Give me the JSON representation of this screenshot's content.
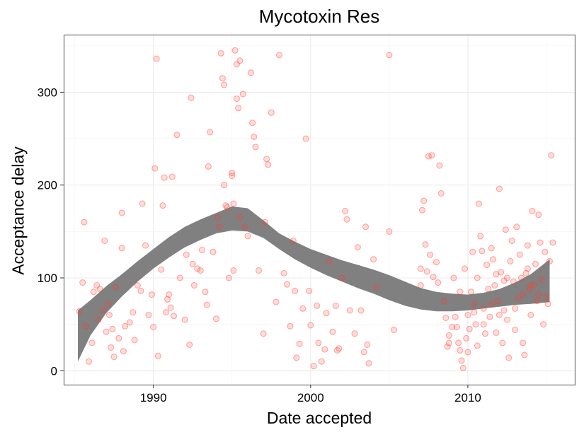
{
  "chart_data": {
    "type": "scatter",
    "title": "Mycotoxin Res",
    "xlabel": "Date accepted",
    "ylabel": "Acceptance delay",
    "xlim": [
      1984.3,
      2016.8
    ],
    "ylim": [
      -15,
      362
    ],
    "x_ticks": [
      1990,
      2000,
      2010
    ],
    "y_ticks": [
      0,
      100,
      200,
      300
    ],
    "x_tick_labels": [
      "1990",
      "2000",
      "2010"
    ],
    "y_tick_labels": [
      "0",
      "100",
      "200",
      "300"
    ],
    "grid": true,
    "colors": {
      "points": "#ff3b30",
      "band": "#808080",
      "background": "#ffffff",
      "grid": "#ebebeb",
      "border": "#7f7f7f"
    },
    "trend_band": {
      "x": [
        1985.2,
        1986,
        1987,
        1988,
        1989,
        1990,
        1991,
        1992,
        1993,
        1994,
        1995,
        1996,
        1997,
        1998,
        1999,
        2000,
        2001,
        2002,
        2003,
        2004,
        2005,
        2006,
        2007,
        2008,
        2009,
        2010,
        2011,
        2012,
        2013,
        2014,
        2015.2
      ],
      "lower": [
        10,
        38,
        62,
        80,
        96,
        110,
        122,
        133,
        141,
        148,
        151,
        150,
        143,
        131,
        120,
        111,
        103,
        96,
        89,
        83,
        76,
        70,
        66,
        64,
        64,
        65,
        67,
        69,
        71,
        72,
        74
      ],
      "upper": [
        65,
        76,
        91,
        104,
        118,
        131,
        144,
        155,
        163,
        170,
        177,
        175,
        162,
        148,
        139,
        131,
        125,
        119,
        114,
        109,
        103,
        96,
        89,
        85,
        83,
        82,
        84,
        88,
        95,
        104,
        120
      ]
    },
    "points": [
      {
        "x": 1985.3,
        "y": 64
      },
      {
        "x": 1985.5,
        "y": 95
      },
      {
        "x": 1985.6,
        "y": 160
      },
      {
        "x": 1985.7,
        "y": 48
      },
      {
        "x": 1985.9,
        "y": 10
      },
      {
        "x": 1986.1,
        "y": 30
      },
      {
        "x": 1986.2,
        "y": 85
      },
      {
        "x": 1986.4,
        "y": 92
      },
      {
        "x": 1986.5,
        "y": 55
      },
      {
        "x": 1986.6,
        "y": 88
      },
      {
        "x": 1986.8,
        "y": 65
      },
      {
        "x": 1986.9,
        "y": 140
      },
      {
        "x": 1987.0,
        "y": 42
      },
      {
        "x": 1987.1,
        "y": 72
      },
      {
        "x": 1987.2,
        "y": 60
      },
      {
        "x": 1987.3,
        "y": 25
      },
      {
        "x": 1987.4,
        "y": 45
      },
      {
        "x": 1987.5,
        "y": 15
      },
      {
        "x": 1987.6,
        "y": 90
      },
      {
        "x": 1987.8,
        "y": 35
      },
      {
        "x": 1988.0,
        "y": 170
      },
      {
        "x": 1988.0,
        "y": 132
      },
      {
        "x": 1988.1,
        "y": 21
      },
      {
        "x": 1988.2,
        "y": 48
      },
      {
        "x": 1988.5,
        "y": 52
      },
      {
        "x": 1988.7,
        "y": 63
      },
      {
        "x": 1988.8,
        "y": 33
      },
      {
        "x": 1989.0,
        "y": 92
      },
      {
        "x": 1989.2,
        "y": 86
      },
      {
        "x": 1989.3,
        "y": 180
      },
      {
        "x": 1989.5,
        "y": 135
      },
      {
        "x": 1989.7,
        "y": 60
      },
      {
        "x": 1989.9,
        "y": 82
      },
      {
        "x": 1990.0,
        "y": 47
      },
      {
        "x": 1990.1,
        "y": 218
      },
      {
        "x": 1990.2,
        "y": 336
      },
      {
        "x": 1990.3,
        "y": 16
      },
      {
        "x": 1990.5,
        "y": 109
      },
      {
        "x": 1990.6,
        "y": 178
      },
      {
        "x": 1990.7,
        "y": 208
      },
      {
        "x": 1990.8,
        "y": 63
      },
      {
        "x": 1990.9,
        "y": 77
      },
      {
        "x": 1991.0,
        "y": 82
      },
      {
        "x": 1991.1,
        "y": 68
      },
      {
        "x": 1991.2,
        "y": 209
      },
      {
        "x": 1991.3,
        "y": 59
      },
      {
        "x": 1991.5,
        "y": 254
      },
      {
        "x": 1991.7,
        "y": 100
      },
      {
        "x": 1992.0,
        "y": 55
      },
      {
        "x": 1992.1,
        "y": 125
      },
      {
        "x": 1992.3,
        "y": 28
      },
      {
        "x": 1992.4,
        "y": 294
      },
      {
        "x": 1992.5,
        "y": 115
      },
      {
        "x": 1992.6,
        "y": 92
      },
      {
        "x": 1992.8,
        "y": 110
      },
      {
        "x": 1993.0,
        "y": 108
      },
      {
        "x": 1993.1,
        "y": 130
      },
      {
        "x": 1993.3,
        "y": 85
      },
      {
        "x": 1993.4,
        "y": 71
      },
      {
        "x": 1993.5,
        "y": 220
      },
      {
        "x": 1993.6,
        "y": 257
      },
      {
        "x": 1993.8,
        "y": 128
      },
      {
        "x": 1994.0,
        "y": 56
      },
      {
        "x": 1994.1,
        "y": 165
      },
      {
        "x": 1994.2,
        "y": 155
      },
      {
        "x": 1994.3,
        "y": 342
      },
      {
        "x": 1994.4,
        "y": 315
      },
      {
        "x": 1994.5,
        "y": 308
      },
      {
        "x": 1994.5,
        "y": 200
      },
      {
        "x": 1994.6,
        "y": 178
      },
      {
        "x": 1994.7,
        "y": 176
      },
      {
        "x": 1994.8,
        "y": 100
      },
      {
        "x": 1995.0,
        "y": 210
      },
      {
        "x": 1995.0,
        "y": 213
      },
      {
        "x": 1995.1,
        "y": 180
      },
      {
        "x": 1995.1,
        "y": 108
      },
      {
        "x": 1995.2,
        "y": 345
      },
      {
        "x": 1995.3,
        "y": 330
      },
      {
        "x": 1995.3,
        "y": 293
      },
      {
        "x": 1995.4,
        "y": 283
      },
      {
        "x": 1995.5,
        "y": 334
      },
      {
        "x": 1995.5,
        "y": 165
      },
      {
        "x": 1995.7,
        "y": 298
      },
      {
        "x": 1995.8,
        "y": 155
      },
      {
        "x": 1996.0,
        "y": 145
      },
      {
        "x": 1996.2,
        "y": 321
      },
      {
        "x": 1996.3,
        "y": 267
      },
      {
        "x": 1996.4,
        "y": 252
      },
      {
        "x": 1996.5,
        "y": 241
      },
      {
        "x": 1996.7,
        "y": 108
      },
      {
        "x": 1997.0,
        "y": 40
      },
      {
        "x": 1997.1,
        "y": 160
      },
      {
        "x": 1997.2,
        "y": 228
      },
      {
        "x": 1997.3,
        "y": 222
      },
      {
        "x": 1997.5,
        "y": 278
      },
      {
        "x": 1997.8,
        "y": 74
      },
      {
        "x": 1998.0,
        "y": 340
      },
      {
        "x": 1998.3,
        "y": 105
      },
      {
        "x": 1998.5,
        "y": 93
      },
      {
        "x": 1998.7,
        "y": 48
      },
      {
        "x": 1998.9,
        "y": 140
      },
      {
        "x": 1999.0,
        "y": 86
      },
      {
        "x": 1999.1,
        "y": 14
      },
      {
        "x": 1999.3,
        "y": 29
      },
      {
        "x": 1999.5,
        "y": 67
      },
      {
        "x": 1999.7,
        "y": 250
      },
      {
        "x": 1999.9,
        "y": 86
      },
      {
        "x": 2000.0,
        "y": 49
      },
      {
        "x": 2000.2,
        "y": 5
      },
      {
        "x": 2000.4,
        "y": 70
      },
      {
        "x": 2000.5,
        "y": 30
      },
      {
        "x": 2000.7,
        "y": 10
      },
      {
        "x": 2000.9,
        "y": 23
      },
      {
        "x": 2001.0,
        "y": 62
      },
      {
        "x": 2001.2,
        "y": 118
      },
      {
        "x": 2001.4,
        "y": 42
      },
      {
        "x": 2001.6,
        "y": 70
      },
      {
        "x": 2001.7,
        "y": 22
      },
      {
        "x": 2001.8,
        "y": 24
      },
      {
        "x": 2002.0,
        "y": 100
      },
      {
        "x": 2002.2,
        "y": 172
      },
      {
        "x": 2002.3,
        "y": 163
      },
      {
        "x": 2002.5,
        "y": 65
      },
      {
        "x": 2002.8,
        "y": 40
      },
      {
        "x": 2003.0,
        "y": 133
      },
      {
        "x": 2003.2,
        "y": 65
      },
      {
        "x": 2003.4,
        "y": 20
      },
      {
        "x": 2003.5,
        "y": 155
      },
      {
        "x": 2003.6,
        "y": 28
      },
      {
        "x": 2003.7,
        "y": 8
      },
      {
        "x": 2004.0,
        "y": 120
      },
      {
        "x": 2004.2,
        "y": 90
      },
      {
        "x": 2005.0,
        "y": 340
      },
      {
        "x": 2005.0,
        "y": 150
      },
      {
        "x": 2005.3,
        "y": 44
      },
      {
        "x": 2007.0,
        "y": 110
      },
      {
        "x": 2007.0,
        "y": 92
      },
      {
        "x": 2007.1,
        "y": 173
      },
      {
        "x": 2007.2,
        "y": 183
      },
      {
        "x": 2007.3,
        "y": 136
      },
      {
        "x": 2007.4,
        "y": 107
      },
      {
        "x": 2007.5,
        "y": 231
      },
      {
        "x": 2007.6,
        "y": 125
      },
      {
        "x": 2007.7,
        "y": 232
      },
      {
        "x": 2007.8,
        "y": 101
      },
      {
        "x": 2008.0,
        "y": 117
      },
      {
        "x": 2008.1,
        "y": 95
      },
      {
        "x": 2008.2,
        "y": 221
      },
      {
        "x": 2008.3,
        "y": 191
      },
      {
        "x": 2008.5,
        "y": 75
      },
      {
        "x": 2008.6,
        "y": 57
      },
      {
        "x": 2008.7,
        "y": 26
      },
      {
        "x": 2008.8,
        "y": 38
      },
      {
        "x": 2009.0,
        "y": 47
      },
      {
        "x": 2009.1,
        "y": 100
      },
      {
        "x": 2009.2,
        "y": 58
      },
      {
        "x": 2009.4,
        "y": 30
      },
      {
        "x": 2009.5,
        "y": 22
      },
      {
        "x": 2009.6,
        "y": 11
      },
      {
        "x": 2009.7,
        "y": 3
      },
      {
        "x": 2009.8,
        "y": 110
      },
      {
        "x": 2010.0,
        "y": 60
      },
      {
        "x": 2010.1,
        "y": 45
      },
      {
        "x": 2010.2,
        "y": 85
      },
      {
        "x": 2010.3,
        "y": 128
      },
      {
        "x": 2010.4,
        "y": 63
      },
      {
        "x": 2010.5,
        "y": 50
      },
      {
        "x": 2010.6,
        "y": 100
      },
      {
        "x": 2010.7,
        "y": 180
      },
      {
        "x": 2010.8,
        "y": 145
      },
      {
        "x": 2010.9,
        "y": 129
      },
      {
        "x": 2011.0,
        "y": 67
      },
      {
        "x": 2011.1,
        "y": 40
      },
      {
        "x": 2011.2,
        "y": 114
      },
      {
        "x": 2011.3,
        "y": 88
      },
      {
        "x": 2011.4,
        "y": 58
      },
      {
        "x": 2011.5,
        "y": 132
      },
      {
        "x": 2011.6,
        "y": 120
      },
      {
        "x": 2011.7,
        "y": 92
      },
      {
        "x": 2011.8,
        "y": 104
      },
      {
        "x": 2011.9,
        "y": 75
      },
      {
        "x": 2012.0,
        "y": 196
      },
      {
        "x": 2012.1,
        "y": 106
      },
      {
        "x": 2012.2,
        "y": 30
      },
      {
        "x": 2012.3,
        "y": 65
      },
      {
        "x": 2012.4,
        "y": 152
      },
      {
        "x": 2012.5,
        "y": 55
      },
      {
        "x": 2012.6,
        "y": 14
      },
      {
        "x": 2012.7,
        "y": 118
      },
      {
        "x": 2012.8,
        "y": 140
      },
      {
        "x": 2012.9,
        "y": 96
      },
      {
        "x": 2013.0,
        "y": 44
      },
      {
        "x": 2013.1,
        "y": 155
      },
      {
        "x": 2013.2,
        "y": 78
      },
      {
        "x": 2013.3,
        "y": 125
      },
      {
        "x": 2013.4,
        "y": 100
      },
      {
        "x": 2013.5,
        "y": 30
      },
      {
        "x": 2013.6,
        "y": 17
      },
      {
        "x": 2013.7,
        "y": 105
      },
      {
        "x": 2013.8,
        "y": 135
      },
      {
        "x": 2013.9,
        "y": 88
      },
      {
        "x": 2014.0,
        "y": 60
      },
      {
        "x": 2014.1,
        "y": 172
      },
      {
        "x": 2014.2,
        "y": 92
      },
      {
        "x": 2014.3,
        "y": 115
      },
      {
        "x": 2014.4,
        "y": 75
      },
      {
        "x": 2014.5,
        "y": 168
      },
      {
        "x": 2014.6,
        "y": 138
      },
      {
        "x": 2014.7,
        "y": 98
      },
      {
        "x": 2014.8,
        "y": 50
      },
      {
        "x": 2014.9,
        "y": 128
      },
      {
        "x": 2015.0,
        "y": 80
      },
      {
        "x": 2015.1,
        "y": 72
      },
      {
        "x": 2015.2,
        "y": 118
      },
      {
        "x": 2015.3,
        "y": 232
      },
      {
        "x": 2015.4,
        "y": 138
      },
      {
        "x": 2009.5,
        "y": 85
      },
      {
        "x": 2009.9,
        "y": 35
      },
      {
        "x": 2010.4,
        "y": 72
      },
      {
        "x": 2011.0,
        "y": 50
      },
      {
        "x": 2011.5,
        "y": 72
      },
      {
        "x": 2012.0,
        "y": 60
      },
      {
        "x": 2012.5,
        "y": 100
      },
      {
        "x": 2013.0,
        "y": 67
      },
      {
        "x": 2013.5,
        "y": 82
      },
      {
        "x": 2014.0,
        "y": 92
      },
      {
        "x": 2014.5,
        "y": 82
      },
      {
        "x": 2010.0,
        "y": 20
      },
      {
        "x": 2008.8,
        "y": 30
      },
      {
        "x": 2010.6,
        "y": 27
      },
      {
        "x": 2009.3,
        "y": 47
      },
      {
        "x": 2011.8,
        "y": 41
      },
      {
        "x": 2012.3,
        "y": 97
      },
      {
        "x": 2013.8,
        "y": 110
      }
    ]
  }
}
